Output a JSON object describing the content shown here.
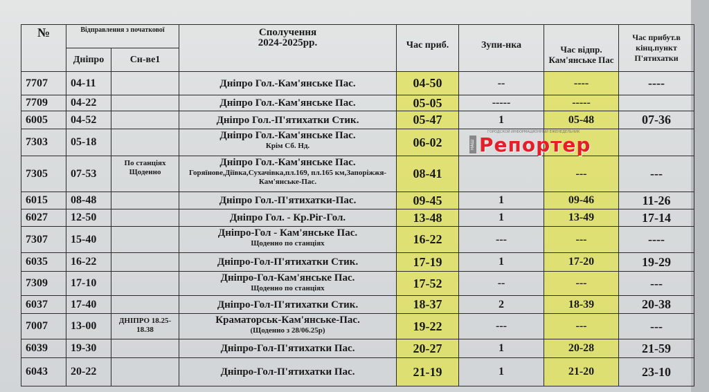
{
  "headers": {
    "number": "№",
    "departure_group": "Відправлення з початкової",
    "dnipro": "Дніпро",
    "snve": "Сн-ве1",
    "route": "Сполучення",
    "route_years": "2024-2025рр.",
    "arrival": "Час приб.",
    "stop": "Зупи-нка",
    "departure_kam": "Час відпр. Кам'янське Пас",
    "arrival_end": "Час прибут.в кінц.пункт П'ятихатки"
  },
  "rows": [
    {
      "num": "7707",
      "dnipro": "04-11",
      "snve": "",
      "route": "Дніпро Гол.-Кам'янське Пас.",
      "route_note": "",
      "arr": "04-50",
      "stop": "--",
      "dep": "----",
      "end": "----"
    },
    {
      "num": "7709",
      "dnipro": "04-22",
      "snve": "",
      "route": "Дніпро Гол.-Кам'янське Пас.",
      "route_note": "",
      "arr": "05-05",
      "stop": "-----",
      "dep": "-----",
      "end": ""
    },
    {
      "num": "6005",
      "dnipro": "04-52",
      "snve": "",
      "route": "Дніпро Гол.-П'ятихатки Стик.",
      "route_note": "",
      "arr": "05-47",
      "stop": "1",
      "dep": "05-48",
      "end": "07-36"
    },
    {
      "num": "7303",
      "dnipro": "05-18",
      "snve": "",
      "route": "Дніпро Гол.-Кам'янське Пас.",
      "route_note": "Крім Сб. Нд.",
      "arr": "06-02",
      "stop": "",
      "dep": "",
      "end": ""
    },
    {
      "num": "7305",
      "dnipro": "07-53",
      "snve": "По станціях Щоденно",
      "route": "Дніпро Гол.-Кам'янське Пас.",
      "route_note": "Горяїнове,Діївка,Сухачівка,пл.169, пл.165 км,Запоріжжя-Кам'янське-Пас.",
      "arr": "08-41",
      "stop": "",
      "dep": "---",
      "end": "---"
    },
    {
      "num": "6015",
      "dnipro": "08-48",
      "snve": "",
      "route": "Дніпро Гол.-П'ятихатки-Пас.",
      "route_note": "",
      "arr": "09-45",
      "stop": "1",
      "dep": "09-46",
      "end": "11-26"
    },
    {
      "num": "6027",
      "dnipro": "12-50",
      "snve": "",
      "route": "Дніпро Гол. - Кр.Ріг-Гол.",
      "route_note": "",
      "arr": "13-48",
      "stop": "1",
      "dep": "13-49",
      "end": "17-14"
    },
    {
      "num": "7307",
      "dnipro": "15-40",
      "snve": "",
      "route": "Дніпро-Гол - Кам'янське Пас.",
      "route_note": "Щоденно по станціях",
      "arr": "16-22",
      "stop": "---",
      "dep": "---",
      "end": "----"
    },
    {
      "num": "6035",
      "dnipro": "16-22",
      "snve": "",
      "route": "Дніпро-Гол-П'ятихатки Стик.",
      "route_note": "",
      "arr": "17-19",
      "stop": "1",
      "dep": "17-20",
      "end": "19-29"
    },
    {
      "num": "7309",
      "dnipro": "17-10",
      "snve": "",
      "route": "Дніпро-Гол-Кам'янське Пас.",
      "route_note": "Щоденно по станціях",
      "arr": "17-52",
      "stop": "--",
      "dep": "---",
      "end": "---"
    },
    {
      "num": "6037",
      "dnipro": "17-40",
      "snve": "",
      "route": "Дніпро-Гол-П'ятихатки Стик.",
      "route_note": "",
      "arr": "18-37",
      "stop": "2",
      "dep": "18-39",
      "end": "20-38"
    },
    {
      "num": "7007",
      "dnipro": "13-00",
      "snve": "ДНІПРО 18.25-18.38",
      "route": "Краматорськ-Кам'янське-Пас.",
      "route_note": "(Щоденно з 28/06.25р)",
      "arr": "19-22",
      "stop": "---",
      "dep": "---",
      "end": "---"
    },
    {
      "num": "6039",
      "dnipro": "19-30",
      "snve": "",
      "route": "Дніпро-Гол-П'ятихатки Пас.",
      "route_note": "",
      "arr": "20-27",
      "stop": "1",
      "dep": "20-28",
      "end": "21-59"
    },
    {
      "num": "6043",
      "dnipro": "20-22",
      "snve": "",
      "route": "Дніпро-Гол-П'ятихатки Пас.",
      "route_note": "",
      "arr": "21-19",
      "stop": "1",
      "dep": "21-20",
      "end": "23-10"
    }
  ],
  "watermark": {
    "name": "Репортер",
    "tagline": "ГОРОДСКОЙ ИНФОРМАЦИОННЫЙ ЕЖЕНЕДЕЛЬНИК",
    "prefix": "НАШ",
    "color": "#e3202a"
  },
  "colors": {
    "highlight": "#e1e250"
  }
}
